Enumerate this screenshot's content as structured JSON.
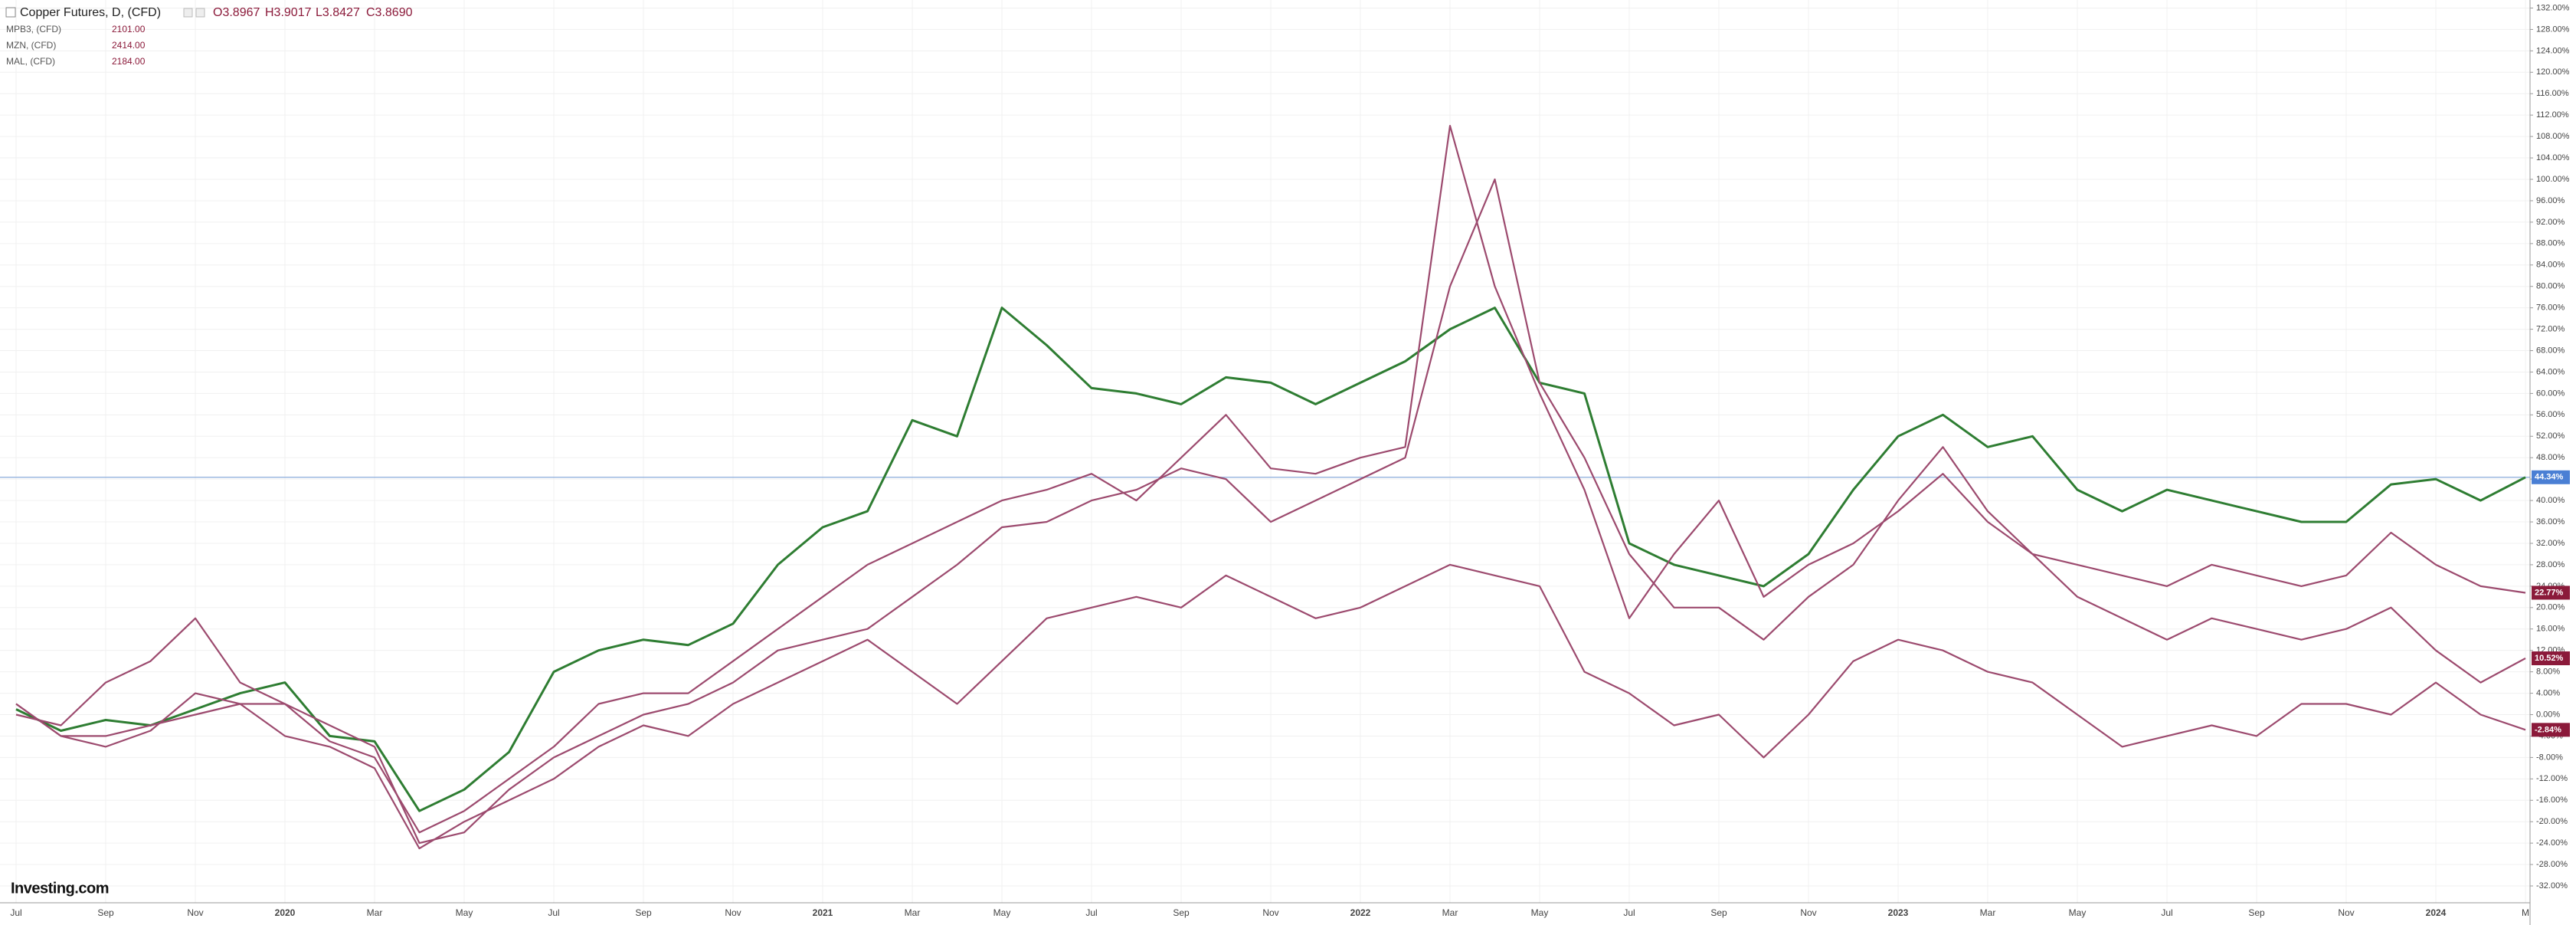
{
  "chart_data": {
    "type": "line",
    "title": "Copper Futures, D, (CFD)",
    "ohlc": [
      "O3.8967",
      "H3.9017",
      "L3.8427",
      "C3.8690"
    ],
    "logo": "Investing.com",
    "categories": [
      "Jul",
      null,
      "Sep",
      null,
      "Nov",
      null,
      "2020",
      null,
      "Mar",
      null,
      "May",
      null,
      "Jul",
      null,
      "Sep",
      null,
      "Nov",
      null,
      "2021",
      null,
      "Mar",
      null,
      "May",
      null,
      "Jul",
      null,
      "Sep",
      null,
      "Nov",
      null,
      "2022",
      null,
      "Mar",
      null,
      "May",
      null,
      "Jul",
      null,
      "Sep",
      null,
      "Nov",
      null,
      "2023",
      null,
      "Mar",
      null,
      "May",
      null,
      "Jul",
      null,
      "Sep",
      null,
      "Nov",
      null,
      "2024",
      null,
      "M"
    ],
    "series": [
      {
        "name": "Copper Futures, D, (CFD)",
        "color": "#2e7d32",
        "label_color": "#4a7fd4",
        "values": [
          1,
          -3,
          -1,
          -2,
          1,
          4,
          6,
          -4,
          -5,
          -18,
          -14,
          -7,
          8,
          12,
          14,
          13,
          17,
          28,
          35,
          38,
          55,
          52,
          76,
          69,
          61,
          60,
          58,
          63,
          62,
          58,
          62,
          66,
          72,
          76,
          62,
          60,
          32,
          28,
          26,
          24,
          30,
          42,
          52,
          56,
          50,
          52,
          42,
          38,
          42,
          40,
          38,
          36,
          36,
          43,
          44,
          40,
          44.34
        ],
        "value_labels": [
          null,
          null,
          null,
          null,
          null,
          null,
          null,
          null,
          null,
          null,
          null,
          null,
          null,
          null,
          null,
          null,
          null,
          null,
          null,
          null,
          null,
          null,
          null,
          null,
          null,
          null,
          null,
          null,
          null,
          null,
          null,
          null,
          null,
          null,
          null,
          null,
          null,
          null,
          null,
          null,
          null,
          null,
          null,
          null,
          null,
          null,
          null,
          null,
          null,
          null,
          null,
          null,
          null,
          null,
          null,
          null,
          "44.34%"
        ]
      },
      {
        "name": "MPB3, (CFD)",
        "last": "2101.00",
        "color": "#9c4a6e",
        "label_color": "#8b1a3a",
        "values": [
          2,
          -4,
          -6,
          -3,
          4,
          2,
          2,
          -5,
          -8,
          -22,
          -18,
          -12,
          -6,
          2,
          4,
          4,
          10,
          16,
          22,
          28,
          32,
          36,
          40,
          42,
          45,
          40,
          48,
          56,
          46,
          45,
          48,
          50,
          110,
          80,
          60,
          42,
          18,
          30,
          40,
          22,
          28,
          32,
          38,
          45,
          36,
          30,
          28,
          26,
          24,
          28,
          26,
          24,
          26,
          34,
          28,
          24,
          22.77
        ],
        "value_labels": [
          null,
          null,
          null,
          null,
          null,
          null,
          null,
          null,
          null,
          null,
          null,
          null,
          null,
          null,
          null,
          null,
          null,
          null,
          null,
          null,
          null,
          null,
          null,
          null,
          null,
          null,
          null,
          null,
          null,
          null,
          null,
          null,
          null,
          null,
          null,
          null,
          null,
          null,
          null,
          null,
          null,
          null,
          null,
          null,
          null,
          null,
          null,
          null,
          null,
          null,
          null,
          null,
          null,
          null,
          null,
          null,
          "22.77%"
        ]
      },
      {
        "name": "MZN, (CFD)",
        "last": "2414.00",
        "color": "#9c4a6e",
        "label_color": "#8b1a3a",
        "values": [
          0,
          -2,
          6,
          10,
          18,
          6,
          2,
          -2,
          -6,
          -24,
          -22,
          -14,
          -8,
          -4,
          0,
          2,
          6,
          12,
          14,
          16,
          22,
          28,
          35,
          36,
          40,
          42,
          46,
          44,
          36,
          40,
          44,
          48,
          80,
          100,
          62,
          48,
          30,
          20,
          20,
          14,
          22,
          28,
          40,
          50,
          38,
          30,
          22,
          18,
          14,
          18,
          16,
          14,
          16,
          20,
          12,
          6,
          10.52
        ],
        "value_labels": [
          null,
          null,
          null,
          null,
          null,
          null,
          null,
          null,
          null,
          null,
          null,
          null,
          null,
          null,
          null,
          null,
          null,
          null,
          null,
          null,
          null,
          null,
          null,
          null,
          null,
          null,
          null,
          null,
          null,
          null,
          null,
          null,
          null,
          null,
          null,
          null,
          null,
          null,
          null,
          null,
          null,
          null,
          null,
          null,
          null,
          null,
          null,
          null,
          null,
          null,
          null,
          null,
          null,
          null,
          null,
          null,
          "10.52%"
        ]
      },
      {
        "name": "MAL, (CFD)",
        "last": "2184.00",
        "color": "#9c4a6e",
        "label_color": "#8b1a3a",
        "values": [
          2,
          -4,
          -4,
          -2,
          0,
          2,
          -4,
          -6,
          -10,
          -25,
          -20,
          -16,
          -12,
          -6,
          -2,
          -4,
          2,
          6,
          10,
          14,
          8,
          2,
          10,
          18,
          20,
          22,
          20,
          26,
          22,
          18,
          20,
          24,
          28,
          26,
          24,
          8,
          4,
          -2,
          0,
          -8,
          0,
          10,
          14,
          12,
          8,
          6,
          0,
          -6,
          -4,
          -2,
          -4,
          2,
          2,
          0,
          6,
          0,
          -2.84
        ],
        "value_labels": [
          null,
          null,
          null,
          null,
          null,
          null,
          null,
          null,
          null,
          null,
          null,
          null,
          null,
          null,
          null,
          null,
          null,
          null,
          null,
          null,
          null,
          null,
          null,
          null,
          null,
          null,
          null,
          null,
          null,
          null,
          null,
          null,
          null,
          null,
          null,
          null,
          null,
          null,
          null,
          null,
          null,
          null,
          null,
          null,
          null,
          null,
          null,
          null,
          null,
          null,
          null,
          null,
          null,
          null,
          null,
          null,
          "-2.84%"
        ]
      }
    ],
    "ylim": [
      -34,
      133.5
    ],
    "yticks": [
      {
        "value": -32,
        "label": "-32.00%"
      },
      {
        "value": -28,
        "label": "-28.00%"
      },
      {
        "value": -24,
        "label": "-24.00%"
      },
      {
        "value": -20,
        "label": "-20.00%"
      },
      {
        "value": -16,
        "label": "-16.00%"
      },
      {
        "value": -12,
        "label": "-12.00%"
      },
      {
        "value": -8,
        "label": "-8.00%"
      },
      {
        "value": -4,
        "label": "-4.00%"
      },
      {
        "value": 0,
        "label": "0.00%"
      },
      {
        "value": 4,
        "label": "4.00%"
      },
      {
        "value": 8,
        "label": "8.00%"
      },
      {
        "value": 12,
        "label": "12.00%"
      },
      {
        "value": 16,
        "label": "16.00%"
      },
      {
        "value": 20,
        "label": "20.00%"
      },
      {
        "value": 24,
        "label": "24.00%"
      },
      {
        "value": 28,
        "label": "28.00%"
      },
      {
        "value": 32,
        "label": "32.00%"
      },
      {
        "value": 36,
        "label": "36.00%"
      },
      {
        "value": 40,
        "label": "40.00%"
      },
      {
        "value": 44,
        "label": "44.00%"
      },
      {
        "value": 48,
        "label": "48.00%"
      },
      {
        "value": 52,
        "label": "52.00%"
      },
      {
        "value": 56,
        "label": "56.00%"
      },
      {
        "value": 60,
        "label": "60.00%"
      },
      {
        "value": 64,
        "label": "64.00%"
      },
      {
        "value": 68,
        "label": "68.00%"
      },
      {
        "value": 72,
        "label": "72.00%"
      },
      {
        "value": 76,
        "label": "76.00%"
      },
      {
        "value": 80,
        "label": "80.00%"
      },
      {
        "value": 84,
        "label": "84.00%"
      },
      {
        "value": 88,
        "label": "88.00%"
      },
      {
        "value": 92,
        "label": "92.00%"
      },
      {
        "value": 96,
        "label": "96.00%"
      },
      {
        "value": 100,
        "label": "100.00%"
      },
      {
        "value": 104,
        "label": "104.00%"
      },
      {
        "value": 108,
        "label": "108.00%"
      },
      {
        "value": 112,
        "label": "112.00%"
      },
      {
        "value": 116,
        "label": "116.00%"
      },
      {
        "value": 120,
        "label": "120.00%"
      },
      {
        "value": 124,
        "label": "124.00%"
      },
      {
        "value": 128,
        "label": "128.00%"
      },
      {
        "value": 132,
        "label": "132.00%"
      }
    ],
    "grid": true
  }
}
